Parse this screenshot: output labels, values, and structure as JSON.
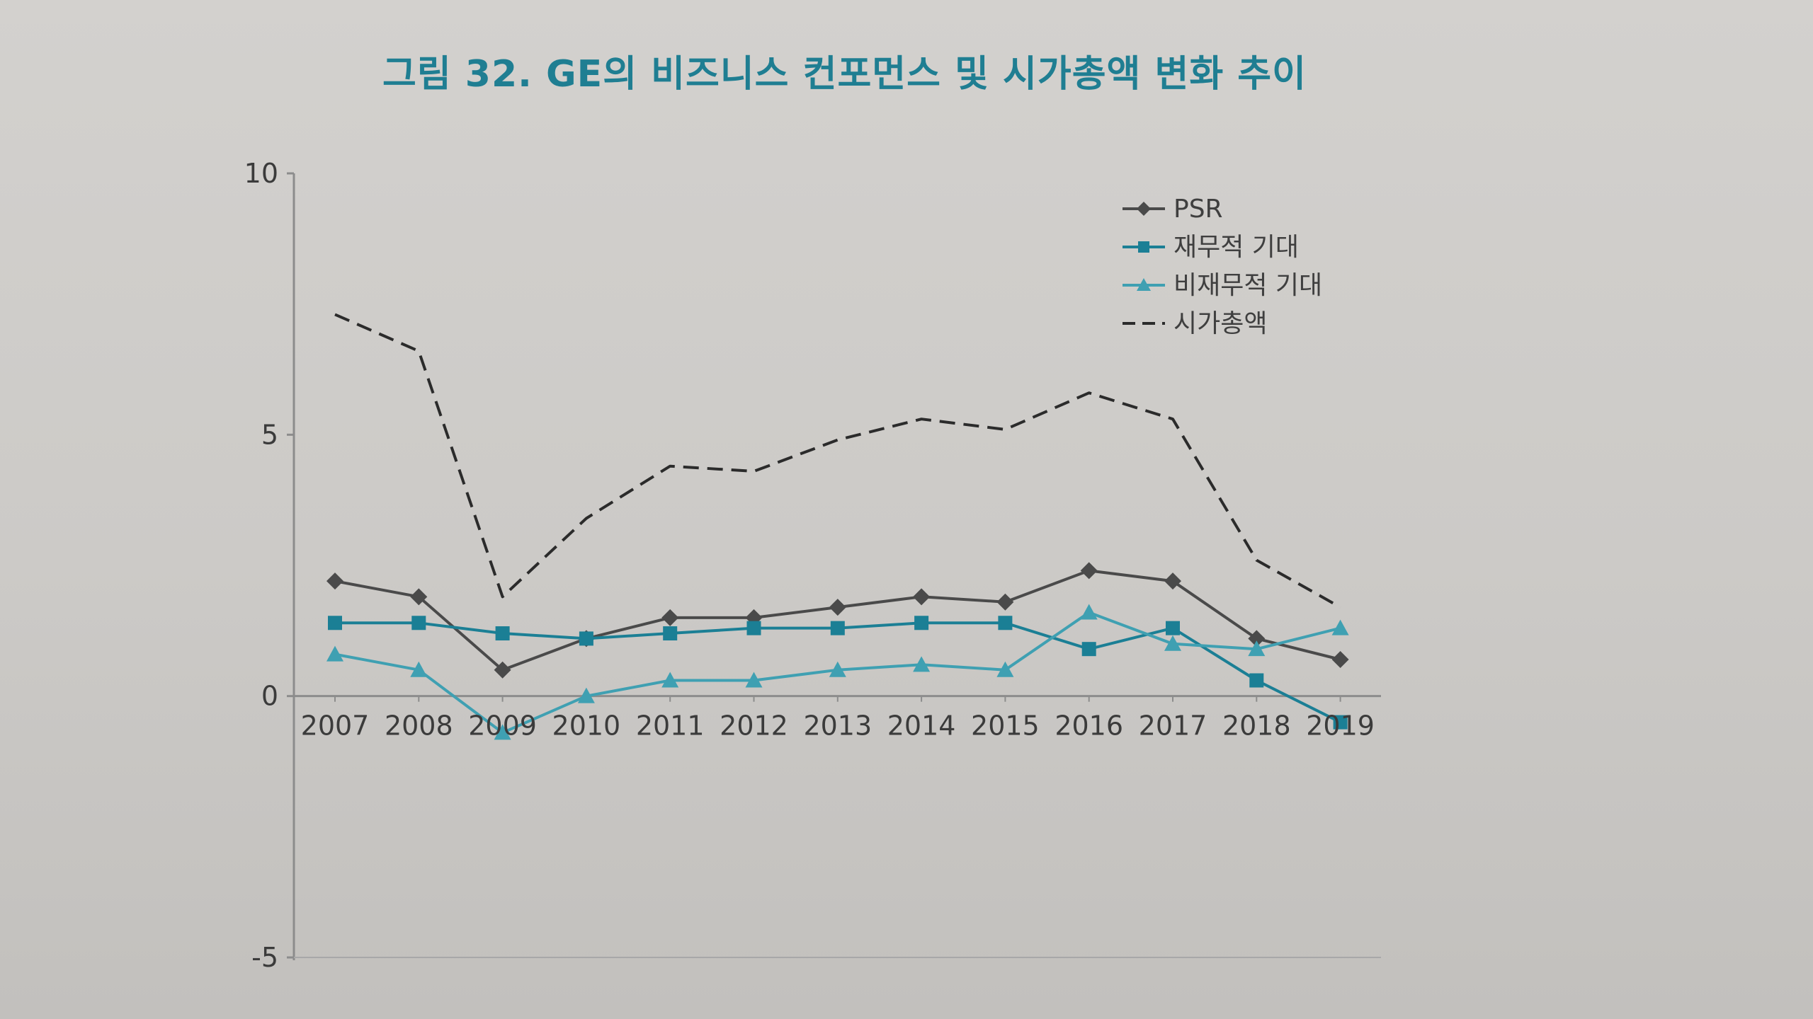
{
  "colors": {
    "psr": "#4a4a4a",
    "financial": "#1b7f95",
    "nonfinancial": "#3fa0b2",
    "marketcap": "#2b2b2b",
    "title": "#1f7e92",
    "axis": "#8c8c8c"
  },
  "chart_data": {
    "type": "line",
    "title": "그림 32. GE의 비즈니스 컨포먼스 및 시가총액 변화 추이",
    "xlabel": "",
    "ylabel": "",
    "ylim": [
      -5,
      10
    ],
    "yticks": [
      10,
      5,
      0,
      -5
    ],
    "grid": false,
    "legend_position": "top-right",
    "categories": [
      "2007",
      "2008",
      "2009",
      "2010",
      "2011",
      "2012",
      "2013",
      "2014",
      "2015",
      "2016",
      "2017",
      "2018",
      "2019"
    ],
    "series": [
      {
        "name": "PSR",
        "style": "solid",
        "marker": "diamond",
        "color": "#4a4a4a",
        "values": [
          2.2,
          1.9,
          0.5,
          1.1,
          1.5,
          1.5,
          1.7,
          1.9,
          1.8,
          2.4,
          2.2,
          1.1,
          0.7
        ]
      },
      {
        "name": "재무적 기대",
        "style": "solid",
        "marker": "square",
        "color": "#1b7f95",
        "values": [
          1.4,
          1.4,
          1.2,
          1.1,
          1.2,
          1.3,
          1.3,
          1.4,
          1.4,
          0.9,
          1.3,
          0.3,
          -0.5
        ]
      },
      {
        "name": "비재무적 기대",
        "style": "solid",
        "marker": "triangle",
        "color": "#3fa0b2",
        "values": [
          0.8,
          0.5,
          -0.7,
          0.0,
          0.3,
          0.3,
          0.5,
          0.6,
          0.5,
          1.6,
          1.0,
          0.9,
          1.3
        ]
      },
      {
        "name": "시가총액",
        "style": "dashed",
        "marker": "none",
        "color": "#2b2b2b",
        "values": [
          7.3,
          6.6,
          1.9,
          3.4,
          4.4,
          4.3,
          4.9,
          5.3,
          5.1,
          5.8,
          5.3,
          2.6,
          1.7
        ]
      }
    ]
  }
}
